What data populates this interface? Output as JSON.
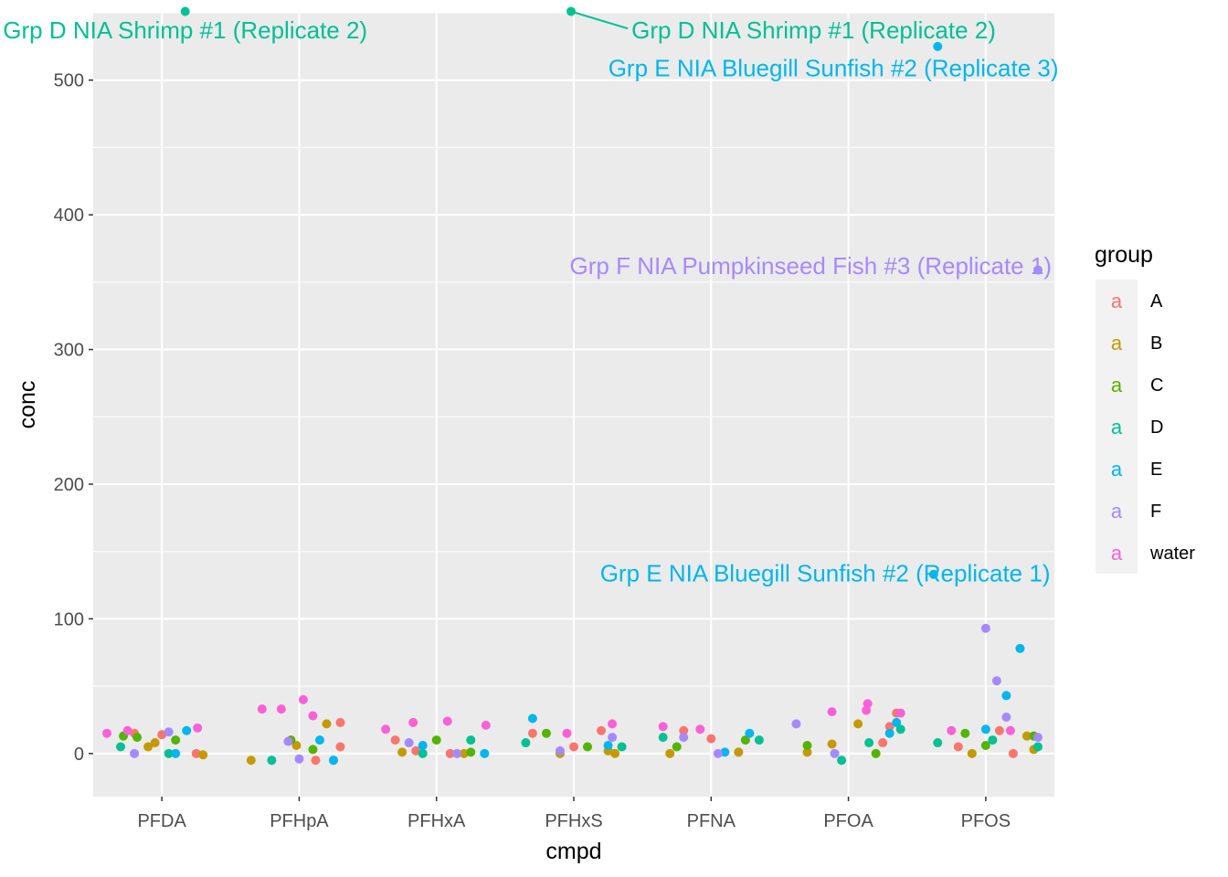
{
  "chart_data": {
    "type": "scatter",
    "title": "",
    "xlabel": "cmpd",
    "ylabel": "conc",
    "categories": [
      "PFDA",
      "PFHpA",
      "PFHxA",
      "PFHxS",
      "PFNA",
      "PFOA",
      "PFOS"
    ],
    "ylim": [
      -32,
      550
    ],
    "yticks": [
      0,
      100,
      200,
      300,
      400,
      500
    ],
    "ytick_labels": [
      "0",
      "100",
      "200",
      "300",
      "400",
      "500"
    ],
    "grid": true,
    "panel_background": "#ebebeb",
    "legend": {
      "title": "group",
      "placement": "right",
      "key_glyph": "a",
      "entries": [
        {
          "name": "A",
          "color": "#F8766D"
        },
        {
          "name": "B",
          "color": "#C49A00"
        },
        {
          "name": "C",
          "color": "#53B400"
        },
        {
          "name": "D",
          "color": "#00C094"
        },
        {
          "name": "E",
          "color": "#00B6EB"
        },
        {
          "name": "F",
          "color": "#A58AFF"
        },
        {
          "name": "water",
          "color": "#FB61D7"
        }
      ]
    },
    "series": [
      {
        "name": "A",
        "color": "#F8766D",
        "points": [
          {
            "x": "PFDA",
            "dx": -0.2,
            "y": 15
          },
          {
            "x": "PFDA",
            "dx": 0.0,
            "y": 14
          },
          {
            "x": "PFDA",
            "dx": 0.25,
            "y": 0
          },
          {
            "x": "PFHpA",
            "dx": 0.3,
            "y": 23
          },
          {
            "x": "PFHpA",
            "dx": 0.12,
            "y": -5
          },
          {
            "x": "PFHpA",
            "dx": 0.3,
            "y": 5
          },
          {
            "x": "PFHxA",
            "dx": -0.3,
            "y": 10
          },
          {
            "x": "PFHxA",
            "dx": 0.1,
            "y": 0
          },
          {
            "x": "PFHxA",
            "dx": -0.15,
            "y": 2
          },
          {
            "x": "PFHxS",
            "dx": -0.3,
            "y": 15
          },
          {
            "x": "PFHxS",
            "dx": 0.2,
            "y": 17
          },
          {
            "x": "PFHxS",
            "dx": 0.0,
            "y": 5
          },
          {
            "x": "PFNA",
            "dx": -0.2,
            "y": 17
          },
          {
            "x": "PFNA",
            "dx": 0.0,
            "y": 11
          },
          {
            "x": "PFNA",
            "dx": 0.2,
            "y": 1
          },
          {
            "x": "PFOA",
            "dx": 0.3,
            "y": 20
          },
          {
            "x": "PFOA",
            "dx": 0.35,
            "y": 30
          },
          {
            "x": "PFOA",
            "dx": 0.25,
            "y": 8
          },
          {
            "x": "PFOS",
            "dx": 0.1,
            "y": 17
          },
          {
            "x": "PFOS",
            "dx": 0.2,
            "y": 0
          },
          {
            "x": "PFOS",
            "dx": -0.2,
            "y": 5
          }
        ]
      },
      {
        "name": "B",
        "color": "#C49A00",
        "points": [
          {
            "x": "PFDA",
            "dx": -0.1,
            "y": 5
          },
          {
            "x": "PFDA",
            "dx": -0.05,
            "y": 8
          },
          {
            "x": "PFDA",
            "dx": 0.3,
            "y": -1
          },
          {
            "x": "PFHpA",
            "dx": 0.2,
            "y": 22
          },
          {
            "x": "PFHpA",
            "dx": -0.02,
            "y": 6
          },
          {
            "x": "PFHpA",
            "dx": -0.35,
            "y": -5
          },
          {
            "x": "PFHxA",
            "dx": -0.25,
            "y": 1
          },
          {
            "x": "PFHxA",
            "dx": 0.2,
            "y": 0
          },
          {
            "x": "PFHxS",
            "dx": 0.25,
            "y": 2
          },
          {
            "x": "PFHxS",
            "dx": 0.3,
            "y": 0
          },
          {
            "x": "PFHxS",
            "dx": -0.1,
            "y": 0
          },
          {
            "x": "PFNA",
            "dx": -0.3,
            "y": 0
          },
          {
            "x": "PFNA",
            "dx": 0.2,
            "y": 1
          },
          {
            "x": "PFOA",
            "dx": 0.07,
            "y": 22
          },
          {
            "x": "PFOA",
            "dx": -0.12,
            "y": 7
          },
          {
            "x": "PFOA",
            "dx": -0.3,
            "y": 1
          },
          {
            "x": "PFOS",
            "dx": 0.3,
            "y": 13
          },
          {
            "x": "PFOS",
            "dx": 0.35,
            "y": 3
          },
          {
            "x": "PFOS",
            "dx": -0.1,
            "y": 0
          }
        ]
      },
      {
        "name": "C",
        "color": "#53B400",
        "points": [
          {
            "x": "PFDA",
            "dx": -0.28,
            "y": 13
          },
          {
            "x": "PFDA",
            "dx": -0.18,
            "y": 12
          },
          {
            "x": "PFDA",
            "dx": 0.1,
            "y": 10
          },
          {
            "x": "PFHpA",
            "dx": -0.06,
            "y": 10
          },
          {
            "x": "PFHpA",
            "dx": 0.1,
            "y": 3
          },
          {
            "x": "PFHxA",
            "dx": 0.0,
            "y": 10
          },
          {
            "x": "PFHxA",
            "dx": 0.25,
            "y": 1
          },
          {
            "x": "PFHxS",
            "dx": -0.2,
            "y": 15
          },
          {
            "x": "PFHxS",
            "dx": 0.1,
            "y": 5
          },
          {
            "x": "PFNA",
            "dx": 0.25,
            "y": 10
          },
          {
            "x": "PFNA",
            "dx": -0.25,
            "y": 5
          },
          {
            "x": "PFOA",
            "dx": -0.3,
            "y": 6
          },
          {
            "x": "PFOA",
            "dx": 0.2,
            "y": 0
          },
          {
            "x": "PFOS",
            "dx": -0.15,
            "y": 15
          },
          {
            "x": "PFOS",
            "dx": 0.35,
            "y": 13
          },
          {
            "x": "PFOS",
            "dx": 0.0,
            "y": 6
          }
        ]
      },
      {
        "name": "D",
        "color": "#00C094",
        "points": [
          {
            "x": "PFDA",
            "dx": 0.17,
            "y": 551
          },
          {
            "x": "PFHxS",
            "dx": -0.02,
            "y": 551
          },
          {
            "x": "PFDA",
            "dx": -0.3,
            "y": 5
          },
          {
            "x": "PFDA",
            "dx": 0.05,
            "y": 0
          },
          {
            "x": "PFHpA",
            "dx": -0.2,
            "y": -5
          },
          {
            "x": "PFHpA",
            "dx": 0.25,
            "y": -5
          },
          {
            "x": "PFHxA",
            "dx": 0.25,
            "y": 10
          },
          {
            "x": "PFHxA",
            "dx": -0.1,
            "y": 0
          },
          {
            "x": "PFHxS",
            "dx": 0.35,
            "y": 5
          },
          {
            "x": "PFHxS",
            "dx": -0.35,
            "y": 8
          },
          {
            "x": "PFNA",
            "dx": -0.35,
            "y": 12
          },
          {
            "x": "PFNA",
            "dx": 0.35,
            "y": 10
          },
          {
            "x": "PFOA",
            "dx": 0.15,
            "y": 8
          },
          {
            "x": "PFOA",
            "dx": 0.38,
            "y": 18
          },
          {
            "x": "PFOA",
            "dx": -0.05,
            "y": -5
          },
          {
            "x": "PFOS",
            "dx": 0.05,
            "y": 10
          },
          {
            "x": "PFOS",
            "dx": 0.38,
            "y": 5
          },
          {
            "x": "PFOS",
            "dx": -0.35,
            "y": 8
          }
        ]
      },
      {
        "name": "E",
        "color": "#00B6EB",
        "points": [
          {
            "x": "PFOS",
            "dx": -0.35,
            "y": 525
          },
          {
            "x": "PFOS",
            "dx": -0.38,
            "y": 133
          },
          {
            "x": "PFDA",
            "dx": 0.18,
            "y": 17
          },
          {
            "x": "PFDA",
            "dx": 0.1,
            "y": 0
          },
          {
            "x": "PFHpA",
            "dx": 0.15,
            "y": 10
          },
          {
            "x": "PFHpA",
            "dx": 0.25,
            "y": -5
          },
          {
            "x": "PFHxA",
            "dx": -0.1,
            "y": 6
          },
          {
            "x": "PFHxA",
            "dx": 0.35,
            "y": 0
          },
          {
            "x": "PFHxS",
            "dx": -0.3,
            "y": 26
          },
          {
            "x": "PFHxS",
            "dx": 0.25,
            "y": 6
          },
          {
            "x": "PFNA",
            "dx": 0.28,
            "y": 15
          },
          {
            "x": "PFNA",
            "dx": 0.1,
            "y": 1
          },
          {
            "x": "PFOA",
            "dx": 0.35,
            "y": 23
          },
          {
            "x": "PFOA",
            "dx": 0.3,
            "y": 15
          },
          {
            "x": "PFOS",
            "dx": 0.25,
            "y": 78
          },
          {
            "x": "PFOS",
            "dx": 0.15,
            "y": 43
          },
          {
            "x": "PFOS",
            "dx": 0.0,
            "y": 18
          }
        ]
      },
      {
        "name": "F",
        "color": "#A58AFF",
        "points": [
          {
            "x": "PFOS",
            "dx": 0.38,
            "y": 359
          },
          {
            "x": "PFDA",
            "dx": 0.05,
            "y": 16
          },
          {
            "x": "PFDA",
            "dx": -0.2,
            "y": 0
          },
          {
            "x": "PFHpA",
            "dx": -0.08,
            "y": 9
          },
          {
            "x": "PFHpA",
            "dx": 0.0,
            "y": -4
          },
          {
            "x": "PFHxA",
            "dx": -0.2,
            "y": 8
          },
          {
            "x": "PFHxA",
            "dx": 0.15,
            "y": 0
          },
          {
            "x": "PFHxS",
            "dx": 0.28,
            "y": 12
          },
          {
            "x": "PFHxS",
            "dx": -0.1,
            "y": 2
          },
          {
            "x": "PFNA",
            "dx": -0.2,
            "y": 12
          },
          {
            "x": "PFNA",
            "dx": 0.05,
            "y": 0
          },
          {
            "x": "PFOA",
            "dx": -0.38,
            "y": 22
          },
          {
            "x": "PFOA",
            "dx": -0.1,
            "y": 0
          },
          {
            "x": "PFOS",
            "dx": 0.0,
            "y": 93
          },
          {
            "x": "PFOS",
            "dx": 0.08,
            "y": 54
          },
          {
            "x": "PFOS",
            "dx": 0.15,
            "y": 27
          },
          {
            "x": "PFOS",
            "dx": 0.38,
            "y": 12
          }
        ]
      },
      {
        "name": "water",
        "color": "#FB61D7",
        "points": [
          {
            "x": "PFDA",
            "dx": -0.4,
            "y": 15
          },
          {
            "x": "PFDA",
            "dx": -0.25,
            "y": 17
          },
          {
            "x": "PFDA",
            "dx": 0.26,
            "y": 19
          },
          {
            "x": "PFHpA",
            "dx": -0.27,
            "y": 33
          },
          {
            "x": "PFHpA",
            "dx": -0.13,
            "y": 33
          },
          {
            "x": "PFHpA",
            "dx": 0.03,
            "y": 40
          },
          {
            "x": "PFHpA",
            "dx": 0.1,
            "y": 28
          },
          {
            "x": "PFHxA",
            "dx": -0.37,
            "y": 18
          },
          {
            "x": "PFHxA",
            "dx": -0.17,
            "y": 23
          },
          {
            "x": "PFHxA",
            "dx": 0.08,
            "y": 24
          },
          {
            "x": "PFHxA",
            "dx": 0.36,
            "y": 21
          },
          {
            "x": "PFHxS",
            "dx": 0.28,
            "y": 22
          },
          {
            "x": "PFHxS",
            "dx": -0.05,
            "y": 15
          },
          {
            "x": "PFNA",
            "dx": -0.35,
            "y": 20
          },
          {
            "x": "PFNA",
            "dx": -0.08,
            "y": 18
          },
          {
            "x": "PFOA",
            "dx": -0.12,
            "y": 31
          },
          {
            "x": "PFOA",
            "dx": 0.13,
            "y": 32
          },
          {
            "x": "PFOA",
            "dx": 0.14,
            "y": 37
          },
          {
            "x": "PFOA",
            "dx": 0.38,
            "y": 30
          },
          {
            "x": "PFOS",
            "dx": -0.25,
            "y": 17
          },
          {
            "x": "PFOS",
            "dx": 0.18,
            "y": 17
          }
        ]
      }
    ],
    "annotations": [
      {
        "text": "Grp D NIA Shrimp #1 (Replicate 2)",
        "group": "D",
        "label_x": "PFDA",
        "label_dx": 0.17,
        "label_y": 537,
        "anchor": "middle",
        "point_x": "PFDA",
        "point_dx": 0.17,
        "point_y": 551
      },
      {
        "text": "Grp D NIA Shrimp #1 (Replicate 2)",
        "group": "D",
        "label_x": "PFHxS",
        "label_dx": 0.42,
        "label_y": 537,
        "anchor": "start",
        "point_x": "PFHxS",
        "point_dx": -0.02,
        "point_y": 551,
        "segment": true
      },
      {
        "text": "Grp E NIA Bluegill Sunfish #2 (Replicate 3)",
        "group": "E",
        "label_x": "PFOS",
        "label_dx": 0.53,
        "label_y": 509,
        "anchor": "end",
        "point_x": "PFOS",
        "point_dx": -0.35,
        "point_y": 525
      },
      {
        "text": "Grp F NIA Pumpkinseed Fish #3 (Replicate 1)",
        "group": "F",
        "label_x": "PFOS",
        "label_dx": 0.48,
        "label_y": 362,
        "anchor": "end",
        "point_x": "PFOS",
        "point_dx": 0.38,
        "point_y": 359
      },
      {
        "text": "Grp E NIA Bluegill Sunfish #2 (Replicate 1)",
        "group": "E",
        "label_x": "PFOS",
        "label_dx": 0.47,
        "label_y": 134,
        "anchor": "end",
        "point_x": "PFOS",
        "point_dx": -0.38,
        "point_y": 133
      }
    ]
  }
}
